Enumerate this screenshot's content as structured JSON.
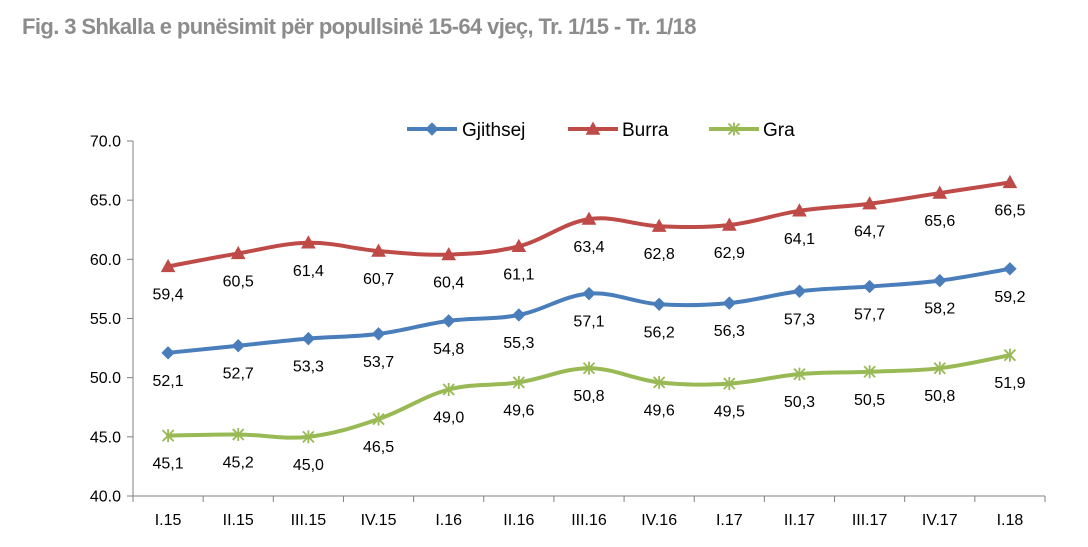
{
  "chart_data": {
    "type": "line",
    "title": "Fig. 3 Shkalla e punësimit për popullsinë 15-64 vjeç, Tr. 1/15 - Tr. 1/18",
    "categories": [
      "I.15",
      "II.15",
      "III.15",
      "IV.15",
      "I.16",
      "II.16",
      "III.16",
      "IV.16",
      "I.17",
      "II.17",
      "III.17",
      "IV.17",
      "I.18"
    ],
    "ylim": [
      40.0,
      70.0
    ],
    "yticks": [
      "40.0",
      "45.0",
      "50.0",
      "55.0",
      "60.0",
      "65.0",
      "70.0"
    ],
    "grid": false,
    "legend_position": "top-center",
    "series": [
      {
        "name": "Gjithsej",
        "color": "#4a7ebb",
        "marker": "diamond",
        "values": [
          52.1,
          52.7,
          53.3,
          53.7,
          54.8,
          55.3,
          57.1,
          56.2,
          56.3,
          57.3,
          57.7,
          58.2,
          59.2
        ],
        "labels": [
          "52,1",
          "52,7",
          "53,3",
          "53,7",
          "54,8",
          "55,3",
          "57,1",
          "56,2",
          "56,3",
          "57,3",
          "57,7",
          "58,2",
          "59,2"
        ]
      },
      {
        "name": "Burra",
        "color": "#be4b48",
        "marker": "triangle",
        "values": [
          59.4,
          60.5,
          61.4,
          60.7,
          60.4,
          61.1,
          63.4,
          62.8,
          62.9,
          64.1,
          64.7,
          65.6,
          66.5
        ],
        "labels": [
          "59,4",
          "60,5",
          "61,4",
          "60,7",
          "60,4",
          "61,1",
          "63,4",
          "62,8",
          "62,9",
          "64,1",
          "64,7",
          "65,6",
          "66,5"
        ]
      },
      {
        "name": "Gra",
        "color": "#98b954",
        "marker": "star",
        "values": [
          45.1,
          45.2,
          45.0,
          46.5,
          49.0,
          49.6,
          50.8,
          49.6,
          49.5,
          50.3,
          50.5,
          50.8,
          51.9
        ],
        "labels": [
          "45,1",
          "45,2",
          "45,0",
          "46,5",
          "49,0",
          "49,6",
          "50,8",
          "49,6",
          "49,5",
          "50,3",
          "50,5",
          "50,8",
          "51,9"
        ]
      }
    ]
  }
}
